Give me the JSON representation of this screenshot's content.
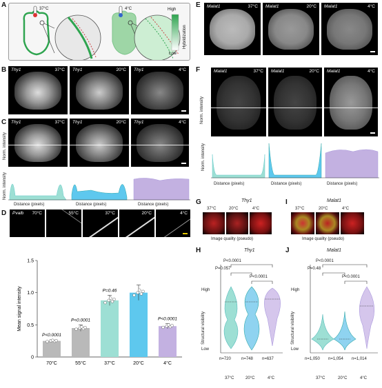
{
  "panels": {
    "A": {
      "label": "A",
      "temp_hot": "37°C",
      "temp_cold": "4°C",
      "legend_high": "High",
      "legend_low": "Low",
      "legend_title": "Hybridization"
    },
    "B": {
      "label": "B",
      "images": [
        {
          "gene": "Thy1",
          "temp": "37°C"
        },
        {
          "gene": "Thy1",
          "temp": "20°C"
        },
        {
          "gene": "Thy1",
          "temp": "4°C"
        }
      ]
    },
    "C": {
      "label": "C",
      "images": [
        {
          "gene": "Thy1",
          "temp": "37°C"
        },
        {
          "gene": "Thy1",
          "temp": "20°C"
        },
        {
          "gene": "Thy1",
          "temp": "4°C"
        }
      ],
      "ylabel": "Norm. intensity",
      "xlabel": "Distance (pixels)"
    },
    "D": {
      "label": "D",
      "images": [
        {
          "gene": "Pvalb",
          "temp": "70°C"
        },
        {
          "temp": "55°C"
        },
        {
          "temp": "37°C"
        },
        {
          "temp": "20°C"
        },
        {
          "temp": "4°C"
        }
      ]
    },
    "E": {
      "label": "E",
      "images": [
        {
          "gene": "Malat1",
          "temp": "37°C"
        },
        {
          "gene": "Malat1",
          "temp": "20°C"
        },
        {
          "gene": "Malat1",
          "temp": "4°C"
        }
      ]
    },
    "F": {
      "label": "F",
      "images": [
        {
          "gene": "Malat1",
          "temp": "37°C"
        },
        {
          "gene": "Malat1",
          "temp": "20°C"
        },
        {
          "gene": "Malat1",
          "temp": "4°C"
        }
      ],
      "ylabel": "Norm. intensity",
      "xlabel": "Distance (pixels)"
    },
    "G": {
      "label": "G",
      "gene": "Thy1",
      "temps": [
        "37°C",
        "20°C",
        "4°C"
      ],
      "caption": "Image quality (pseudo)"
    },
    "H": {
      "label": "H",
      "gene": "Thy1",
      "ylabel": "Structural visibility",
      "high": "High",
      "low": "Low",
      "cats": [
        "37°C",
        "20°C",
        "4°C"
      ],
      "ns": [
        "n=720",
        "n=748",
        "n=637"
      ],
      "pvals": [
        "P<0.0001",
        "P=0.057",
        "P<0.0001"
      ]
    },
    "I": {
      "label": "I",
      "gene": "Malat1",
      "temps": [
        "37°C",
        "20°C",
        "4°C"
      ],
      "caption": "Image quality (pseudo)"
    },
    "J": {
      "label": "J",
      "gene": "Malat1",
      "ylabel": "Structural visibility",
      "high": "High",
      "low": "Low",
      "cats": [
        "37°C",
        "20°C",
        "4°C"
      ],
      "ns": [
        "n=1,050",
        "n=1,054",
        "n=1,014"
      ],
      "pvals": [
        "P<0.0001",
        "P=0.48",
        "P<0.0001"
      ]
    }
  },
  "chart_data": [
    {
      "type": "bar",
      "panel": "D",
      "categories": [
        "70°C",
        "55°C",
        "37°C",
        "20°C",
        "4°C"
      ],
      "values": [
        0.25,
        0.45,
        0.88,
        1.0,
        0.48
      ],
      "errors": [
        0.02,
        0.05,
        0.08,
        0.12,
        0.04
      ],
      "pvals": [
        "P<0.0001",
        "P<0.0001",
        "P=0.46",
        "",
        "P<0.0001"
      ],
      "ylabel": "Mean signal intensity",
      "ylim": [
        0,
        1.5
      ],
      "yticks": [
        "0",
        "0.5",
        "1.0",
        "1.5"
      ],
      "colors": [
        "#b9b9b9",
        "#b9b9b9",
        "#9ddfd4",
        "#5ec8ee",
        "#c3b1e1"
      ]
    }
  ]
}
